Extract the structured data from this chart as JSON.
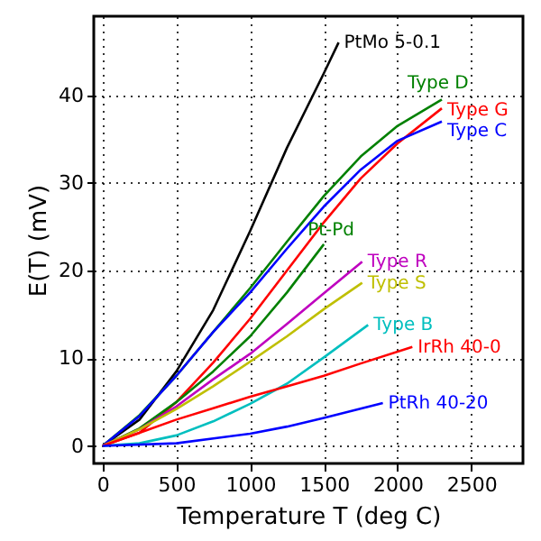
{
  "chart_data": {
    "type": "line",
    "xlabel": "Temperature T (deg C)",
    "ylabel": "E(T) (mV)",
    "xlim": [
      -60,
      2850
    ],
    "ylim": [
      -2,
      49
    ],
    "xticks": [
      0,
      500,
      1000,
      1500,
      2000,
      2500
    ],
    "yticks": [
      0,
      10,
      20,
      30,
      40
    ],
    "grid": true,
    "line_style": "solid",
    "marker": "none",
    "series": [
      {
        "name": "PtMo 5-0.1",
        "color": "#000000",
        "x": [
          0,
          250,
          500,
          750,
          1000,
          1250,
          1500,
          1600
        ],
        "values": [
          0,
          3,
          8.5,
          15.5,
          24.5,
          34,
          42.5,
          46
        ]
      },
      {
        "name": "Type D",
        "color": "#008000",
        "x": [
          0,
          250,
          500,
          750,
          1000,
          1250,
          1500,
          1750,
          2000,
          2300
        ],
        "values": [
          0,
          3.5,
          8,
          13,
          18,
          23.3,
          28.5,
          33,
          36.5,
          39.5
        ]
      },
      {
        "name": "Type G",
        "color": "#ff0000",
        "x": [
          0,
          250,
          500,
          750,
          1000,
          1250,
          1500,
          1750,
          2000,
          2300
        ],
        "values": [
          0,
          1.5,
          5,
          9.5,
          14.5,
          20,
          25.5,
          30.5,
          34.5,
          38.5
        ]
      },
      {
        "name": "Type C",
        "color": "#0000ff",
        "x": [
          0,
          250,
          500,
          750,
          1000,
          1250,
          1500,
          1750,
          2000,
          2300
        ],
        "values": [
          0,
          3.4,
          8,
          13,
          17.5,
          22.5,
          27.3,
          31.5,
          34.8,
          37
        ]
      },
      {
        "name": "Pt-Pd",
        "color": "#008000",
        "x": [
          0,
          250,
          500,
          750,
          1000,
          1250,
          1500
        ],
        "values": [
          0,
          2,
          5,
          8.5,
          12.5,
          17.5,
          23
        ]
      },
      {
        "name": "Type R",
        "color": "#bf00bf",
        "x": [
          0,
          250,
          500,
          750,
          1000,
          1250,
          1500,
          1760
        ],
        "values": [
          0,
          1.9,
          4.5,
          7.6,
          10.5,
          13.9,
          17.4,
          21
        ]
      },
      {
        "name": "Type S",
        "color": "#bfbf00",
        "x": [
          0,
          250,
          500,
          750,
          1000,
          1250,
          1500,
          1760
        ],
        "values": [
          0,
          1.9,
          4.2,
          6.8,
          9.6,
          12.5,
          15.6,
          18.6
        ]
      },
      {
        "name": "Type B",
        "color": "#00bfbf",
        "x": [
          0,
          250,
          500,
          750,
          1000,
          1250,
          1500,
          1800
        ],
        "values": [
          0,
          0.3,
          1.2,
          2.8,
          4.8,
          7.1,
          10.1,
          13.8
        ]
      },
      {
        "name": "IrRh 40-0",
        "color": "#ff0000",
        "x": [
          0,
          250,
          500,
          750,
          1000,
          1250,
          1500,
          1750,
          2100
        ],
        "values": [
          0,
          1.5,
          3,
          4.3,
          5.6,
          6.8,
          8,
          9.4,
          11.3
        ]
      },
      {
        "name": "PtRh 40-20",
        "color": "#0000ff",
        "x": [
          0,
          500,
          1000,
          1250,
          1500,
          1900
        ],
        "values": [
          0,
          0.3,
          1.4,
          2.2,
          3.2,
          4.9
        ]
      }
    ]
  }
}
